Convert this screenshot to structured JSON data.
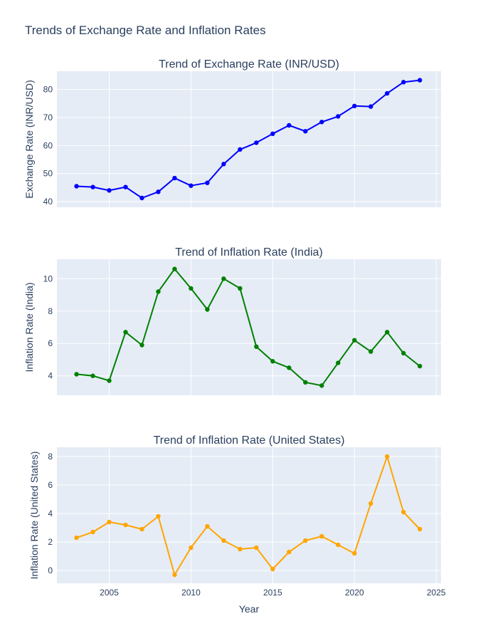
{
  "title": "Trends of Exchange Rate and Inflation Rates",
  "colors": {
    "plot_bg": "#E5ECF6",
    "grid": "#ffffff",
    "text": "#2a3f5f"
  },
  "chart_data": [
    {
      "type": "line",
      "title": "Trend of Exchange Rate (INR/USD)",
      "xlabel": "",
      "ylabel": "Exchange Rate (INR/USD)",
      "xlim": [
        2001.8,
        2025.3
      ],
      "ylim": [
        38,
        86.5
      ],
      "x_ticks": [
        2005,
        2010,
        2015,
        2020,
        2025
      ],
      "x_tick_labels_shown": false,
      "y_ticks": [
        40,
        50,
        60,
        70,
        80
      ],
      "grid": true,
      "series": [
        {
          "color": "#0000ff",
          "x": [
            2003,
            2004,
            2005,
            2006,
            2007,
            2008,
            2009,
            2010,
            2011,
            2012,
            2013,
            2014,
            2015,
            2016,
            2017,
            2018,
            2019,
            2020,
            2021,
            2022,
            2023,
            2024
          ],
          "values": [
            45.5,
            45.2,
            44.0,
            45.2,
            41.3,
            43.5,
            48.4,
            45.7,
            46.7,
            53.4,
            58.6,
            61.0,
            64.2,
            67.2,
            65.1,
            68.4,
            70.4,
            74.1,
            73.9,
            78.6,
            82.6,
            83.3
          ]
        }
      ]
    },
    {
      "type": "line",
      "title": "Trend of Inflation Rate (India)",
      "xlabel": "",
      "ylabel": "Inflation Rate (India)",
      "xlim": [
        2001.8,
        2025.3
      ],
      "ylim": [
        2.8,
        11.2
      ],
      "x_ticks": [
        2005,
        2010,
        2015,
        2020,
        2025
      ],
      "x_tick_labels_shown": false,
      "y_ticks": [
        4,
        6,
        8,
        10
      ],
      "grid": true,
      "series": [
        {
          "color": "#008000",
          "x": [
            2003,
            2004,
            2005,
            2006,
            2007,
            2008,
            2009,
            2010,
            2011,
            2012,
            2013,
            2014,
            2015,
            2016,
            2017,
            2018,
            2019,
            2020,
            2021,
            2022,
            2023,
            2024
          ],
          "values": [
            4.1,
            4.0,
            3.7,
            6.7,
            5.9,
            9.2,
            10.6,
            9.4,
            8.1,
            10.0,
            9.4,
            5.8,
            4.9,
            4.5,
            3.6,
            3.4,
            4.8,
            6.2,
            5.5,
            6.7,
            5.4,
            4.6
          ]
        }
      ]
    },
    {
      "type": "line",
      "title": "Trend of Inflation Rate (United States)",
      "xlabel": "Year",
      "ylabel": "Inflation Rate (United States)",
      "xlim": [
        2001.8,
        2025.3
      ],
      "ylim": [
        -0.9,
        8.65
      ],
      "x_ticks": [
        2005,
        2010,
        2015,
        2020,
        2025
      ],
      "x_tick_labels_shown": true,
      "y_ticks": [
        0,
        2,
        4,
        6,
        8
      ],
      "grid": true,
      "series": [
        {
          "color": "#ffa500",
          "x": [
            2003,
            2004,
            2005,
            2006,
            2007,
            2008,
            2009,
            2010,
            2011,
            2012,
            2013,
            2014,
            2015,
            2016,
            2017,
            2018,
            2019,
            2020,
            2021,
            2022,
            2023,
            2024
          ],
          "values": [
            2.3,
            2.7,
            3.4,
            3.2,
            2.9,
            3.8,
            -0.3,
            1.6,
            3.1,
            2.1,
            1.5,
            1.6,
            0.1,
            1.3,
            2.1,
            2.4,
            1.8,
            1.2,
            4.7,
            8.0,
            4.1,
            2.9
          ]
        }
      ]
    }
  ]
}
